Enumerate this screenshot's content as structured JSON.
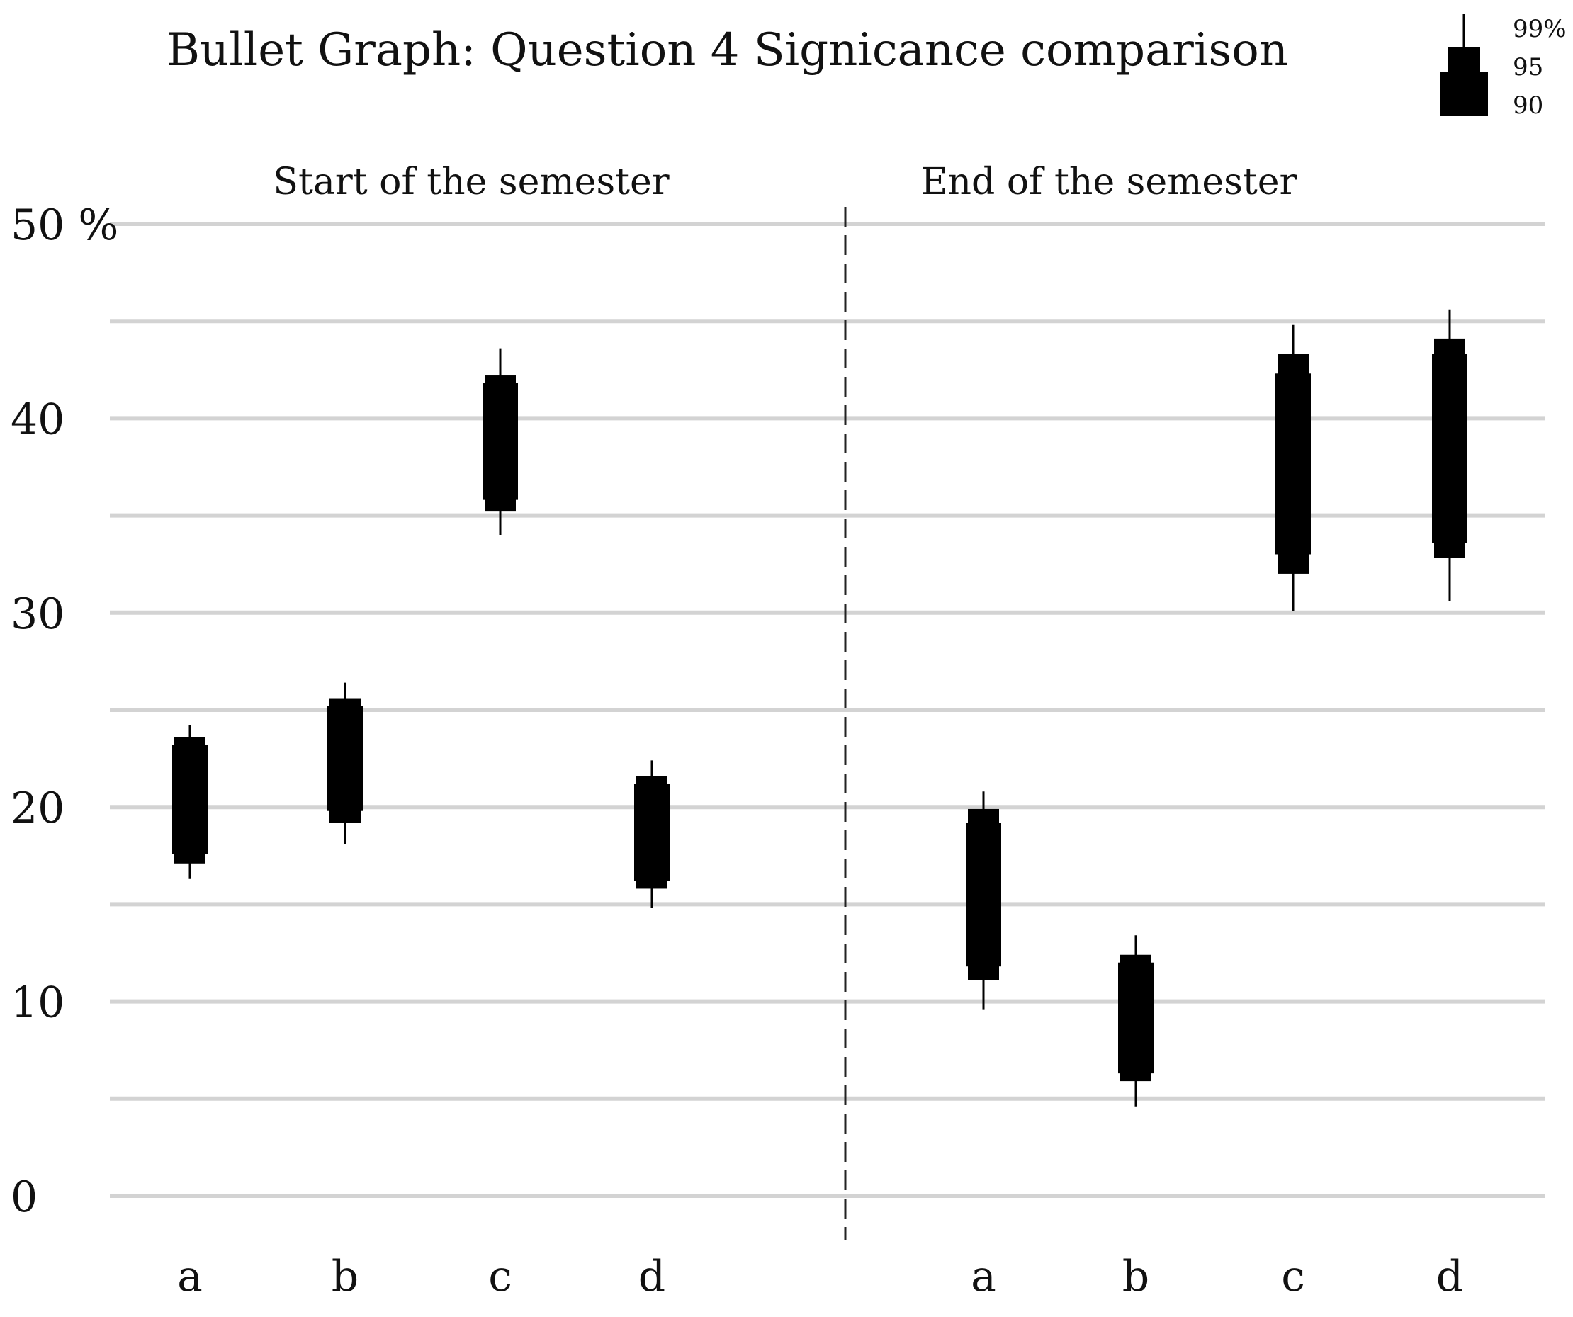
{
  "chart_data": {
    "type": "bullet",
    "title": "Bullet Graph: Question 4  Signicance comparison",
    "y_unit": "%",
    "ylim": [
      0,
      50
    ],
    "y_ticks": [
      {
        "value": 0,
        "label": "0"
      },
      {
        "value": 10,
        "label": "10"
      },
      {
        "value": 20,
        "label": "20"
      },
      {
        "value": 30,
        "label": "30"
      },
      {
        "value": 40,
        "label": "40"
      },
      {
        "value": 50,
        "label": "50 %"
      }
    ],
    "grid_values": [
      0,
      5,
      10,
      15,
      20,
      25,
      30,
      35,
      40,
      45,
      50
    ],
    "grid": true,
    "legend": {
      "placement": "top-right",
      "levels": [
        {
          "label": "99%",
          "level": 99
        },
        {
          "label": "95",
          "level": 95
        },
        {
          "label": "90",
          "level": 90
        }
      ]
    },
    "panels": [
      {
        "title": "Start of the semester",
        "categories": [
          {
            "label": "a",
            "ci99": [
              16.3,
              24.2
            ],
            "ci95": [
              17.1,
              23.6
            ],
            "ci90": [
              17.6,
              23.2
            ]
          },
          {
            "label": "b",
            "ci99": [
              18.1,
              26.4
            ],
            "ci95": [
              19.2,
              25.6
            ],
            "ci90": [
              19.8,
              25.2
            ]
          },
          {
            "label": "c",
            "ci99": [
              34.0,
              43.6
            ],
            "ci95": [
              35.2,
              42.2
            ],
            "ci90": [
              35.8,
              41.8
            ]
          },
          {
            "label": "d",
            "ci99": [
              14.8,
              22.4
            ],
            "ci95": [
              15.8,
              21.6
            ],
            "ci90": [
              16.2,
              21.2
            ]
          }
        ]
      },
      {
        "title": "End of the semester",
        "categories": [
          {
            "label": "a",
            "ci99": [
              9.6,
              20.8
            ],
            "ci95": [
              11.1,
              19.9
            ],
            "ci90": [
              11.8,
              19.2
            ]
          },
          {
            "label": "b",
            "ci99": [
              4.6,
              13.4
            ],
            "ci95": [
              5.9,
              12.4
            ],
            "ci90": [
              6.3,
              12.0
            ]
          },
          {
            "label": "c",
            "ci99": [
              30.1,
              44.8
            ],
            "ci95": [
              32.0,
              43.3
            ],
            "ci90": [
              33.0,
              42.3
            ]
          },
          {
            "label": "d",
            "ci99": [
              30.6,
              45.6
            ],
            "ci95": [
              32.8,
              44.1
            ],
            "ci90": [
              33.6,
              43.3
            ]
          }
        ]
      }
    ]
  }
}
